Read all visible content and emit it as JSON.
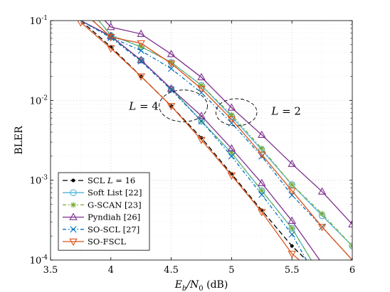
{
  "chart_data": {
    "type": "line",
    "xlabel": "E_b/N_0 (dB)",
    "ylabel": "BLER",
    "xlim": [
      3.5,
      6
    ],
    "ylim": [
      0.0001,
      0.1
    ],
    "y_scale": "log",
    "grid": true,
    "x_ticks": [
      "3.5",
      "4",
      "4.5",
      "5",
      "5.5",
      "6"
    ],
    "y_ticks": [
      {
        "value": 0.1,
        "base": "10",
        "exp": "-1"
      },
      {
        "value": 0.01,
        "base": "10",
        "exp": "-2"
      },
      {
        "value": 0.001,
        "base": "10",
        "exp": "-3"
      },
      {
        "value": 0.0001,
        "base": "10",
        "exp": "-4"
      }
    ],
    "annotations": [
      {
        "text": "L = 4",
        "x": 4.15,
        "y": 0.0085
      },
      {
        "text": "L = 2",
        "x": 5.33,
        "y": 0.0073
      }
    ],
    "ellipses": [
      {
        "cx": 4.6,
        "cy": 0.0085,
        "rx_db": 0.2,
        "y_top": 0.0135,
        "y_bottom": 0.0054
      },
      {
        "cx": 5.04,
        "cy": 0.0072,
        "rx_db": 0.17,
        "y_top": 0.0105,
        "y_bottom": 0.0048
      }
    ],
    "legend": {
      "position": "bottom-left"
    },
    "series": [
      {
        "name": "SCL L = 16",
        "legend_label": "SCL ",
        "legend_math": "L = 16",
        "color": "#000000",
        "dash": "7 4",
        "marker": "dot",
        "x": [
          3.75,
          4.0,
          4.25,
          4.5,
          4.75,
          5.0,
          5.25,
          5.5,
          5.62
        ],
        "y": [
          0.1,
          0.047,
          0.02,
          0.0085,
          0.0034,
          0.0012,
          0.00042,
          0.00015,
          0.0001
        ]
      },
      {
        "name": "Soft List [22]",
        "legend_label": "Soft List [22]",
        "color": "#4db3d6",
        "dash": "",
        "marker": "circle",
        "groups": [
          {
            "x": [
              3.9,
              4.0,
              4.25,
              4.5,
              4.75,
              5.0,
              5.25,
              5.5,
              5.75,
              6.0
            ],
            "y": [
              0.1,
              0.065,
              0.047,
              0.03,
              0.0155,
              0.0063,
              0.0024,
              0.00088,
              0.00036,
              0.00015
            ]
          },
          {
            "x": [
              3.75,
              4.0,
              4.25,
              4.5,
              4.75,
              5.0,
              5.25,
              5.5,
              5.66
            ],
            "y": [
              0.1,
              0.063,
              0.032,
              0.014,
              0.0055,
              0.0022,
              0.00074,
              0.00025,
              0.0001
            ]
          }
        ]
      },
      {
        "name": "G-SCAN [23]",
        "legend_label": "G-SCAN [23]",
        "color": "#77ac30",
        "dash": "5 3 1.5 3",
        "marker": "asterisk",
        "groups": [
          {
            "x": [
              3.9,
              4.0,
              4.25,
              4.5,
              4.75,
              5.0,
              5.25,
              5.5,
              5.75,
              6.0
            ],
            "y": [
              0.1,
              0.066,
              0.047,
              0.03,
              0.0155,
              0.0066,
              0.0025,
              0.00088,
              0.00038,
              0.00015
            ]
          },
          {
            "x": [
              3.75,
              4.0,
              4.25,
              4.5,
              4.75,
              5.0,
              5.25,
              5.5,
              5.66
            ],
            "y": [
              0.1,
              0.063,
              0.032,
              0.014,
              0.0055,
              0.0022,
              0.00074,
              0.00025,
              0.0001
            ]
          }
        ]
      },
      {
        "name": "Pyndiah [26]",
        "legend_label": "Pyndiah [26]",
        "color": "#7e2f8e",
        "dash": "",
        "marker": "triangle",
        "groups": [
          {
            "x": [
              3.95,
              4.0,
              4.25,
              4.5,
              4.75,
              5.0,
              5.25,
              5.5,
              5.75,
              6.0
            ],
            "y": [
              0.1,
              0.083,
              0.068,
              0.038,
              0.0195,
              0.0081,
              0.0037,
              0.0016,
              0.00072,
              0.00028
            ]
          },
          {
            "x": [
              3.75,
              4.0,
              4.25,
              4.5,
              4.75,
              5.0,
              5.25,
              5.5,
              5.73
            ],
            "y": [
              0.1,
              0.064,
              0.032,
              0.014,
              0.0064,
              0.0025,
              0.00092,
              0.00031,
              0.0001
            ]
          }
        ]
      },
      {
        "name": "SO-SCL [27]",
        "legend_label": "SO-SCL [27]",
        "color": "#0072bd",
        "dash": "5 3 1.5 3",
        "marker": "x",
        "groups": [
          {
            "x": [
              3.85,
              4.0,
              4.25,
              4.5,
              4.75,
              5.0,
              5.25,
              5.5,
              5.75,
              6.0
            ],
            "y": [
              0.1,
              0.062,
              0.042,
              0.025,
              0.0125,
              0.0052,
              0.002,
              0.00065,
              0.00026,
              0.0001
            ]
          },
          {
            "x": [
              3.75,
              4.0,
              4.25,
              4.5,
              4.75,
              5.0,
              5.25,
              5.5,
              5.62
            ],
            "y": [
              0.1,
              0.061,
              0.031,
              0.0135,
              0.0055,
              0.002,
              0.00066,
              0.00021,
              0.0001
            ]
          }
        ]
      },
      {
        "name": "SO-FSCL",
        "legend_label": "SO-FSCL",
        "color": "#d95319",
        "dash": "",
        "marker": "triangle-down",
        "groups": [
          {
            "x": [
              3.85,
              4.0,
              4.25,
              4.5,
              4.75,
              5.0,
              5.25,
              5.5,
              5.75,
              6.0
            ],
            "y": [
              0.1,
              0.062,
              0.052,
              0.029,
              0.014,
              0.0058,
              0.0021,
              0.00074,
              0.00026,
              0.0001
            ]
          },
          {
            "x": [
              3.75,
              4.0,
              4.25,
              4.5,
              4.75,
              5.0,
              5.25,
              5.5,
              5.56
            ],
            "y": [
              0.095,
              0.045,
              0.02,
              0.0085,
              0.0032,
              0.00115,
              0.0004,
              0.00012,
              0.0001
            ]
          }
        ]
      }
    ]
  }
}
